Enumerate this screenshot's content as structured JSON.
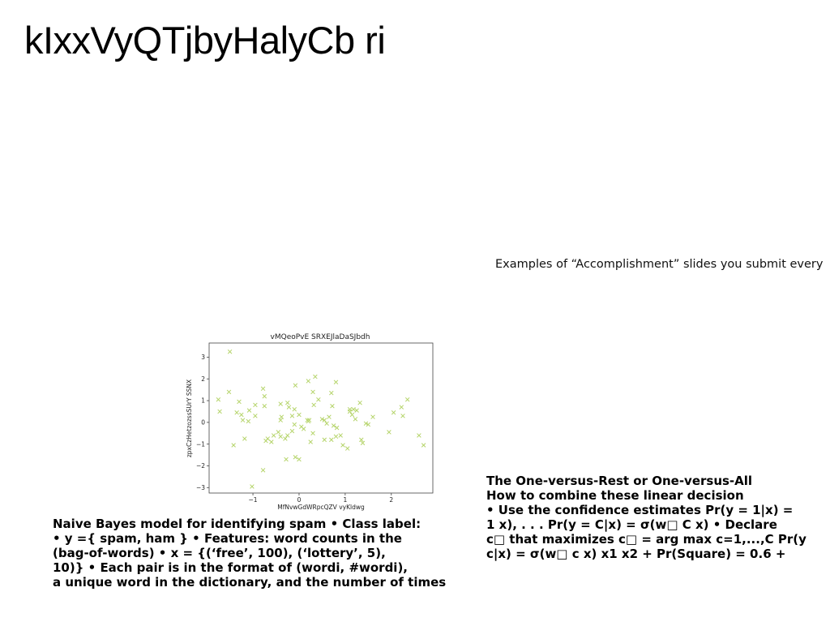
{
  "slide": {
    "title": "kIxxVyQTjbyHalyCb ri",
    "caption": "Examples of “Accomplishment” slides you submit every",
    "left_text": [
      "Naive Bayes model for identifying spam • Class label:",
      "• y ={ spam, ham } • Features: word counts in the",
      "(bag-of-words) • x = {(‘free’, 100), (‘lottery’, 5),",
      "10)} • Each pair is in the format of (wordi, #wordi),",
      "a unique word in the dictionary, and the number of times"
    ],
    "right_text": [
      "The One-versus-Rest or One-versus-All",
      "How to combine these linear decision",
      "• Use the confidence estimates Pr(y = 1|x) =",
      "1 x), . . . Pr(y = C|x) = σ(w□ C x) • Declare",
      "c□ that maximizes c□ = arg max c=1,...,C Pr(y",
      "c|x) = σ(w□ c x) x1 x2 + Pr(Square) = 0.6 +"
    ]
  },
  "chart_data": {
    "type": "scatter",
    "title": "vMQeoPvE SRXEJlaDaSJbdh",
    "xlabel": "MfNvwGdWRpcQZV vyKldwg",
    "ylabel": "zpxCzHetzozssSUrY SSNX",
    "xlim": [
      -1.95,
      2.9
    ],
    "ylim": [
      -3.25,
      3.65
    ],
    "xticks": [
      -1,
      0,
      1,
      2
    ],
    "yticks": [
      -3,
      -2,
      -1,
      0,
      1,
      2,
      3
    ],
    "marker": "x",
    "color": "#b5d46a",
    "grid": false,
    "points": [
      [
        -1.5,
        3.25
      ],
      [
        -1.75,
        1.05
      ],
      [
        -1.72,
        0.5
      ],
      [
        -1.52,
        1.4
      ],
      [
        -1.42,
        -1.05
      ],
      [
        -1.3,
        0.95
      ],
      [
        -1.35,
        0.45
      ],
      [
        -1.22,
        0.1
      ],
      [
        -1.18,
        -0.75
      ],
      [
        -1.25,
        0.35
      ],
      [
        -1.1,
        0.05
      ],
      [
        -1.08,
        0.55
      ],
      [
        -0.95,
        0.8
      ],
      [
        -0.95,
        0.3
      ],
      [
        -0.78,
        1.55
      ],
      [
        -0.75,
        1.2
      ],
      [
        -0.75,
        0.75
      ],
      [
        -0.72,
        -0.85
      ],
      [
        -0.68,
        -0.75
      ],
      [
        -0.6,
        -0.9
      ],
      [
        -0.78,
        -2.2
      ],
      [
        -1.02,
        -2.95
      ],
      [
        -0.55,
        -0.6
      ],
      [
        -0.45,
        -0.45
      ],
      [
        -0.4,
        -0.65
      ],
      [
        -0.4,
        0.85
      ],
      [
        -0.38,
        0.25
      ],
      [
        -0.4,
        0.1
      ],
      [
        -0.3,
        -0.75
      ],
      [
        -0.25,
        -0.6
      ],
      [
        -0.25,
        0.9
      ],
      [
        -0.22,
        0.7
      ],
      [
        -0.15,
        0.3
      ],
      [
        -0.15,
        -0.4
      ],
      [
        -0.28,
        -1.7
      ],
      [
        -0.1,
        -0.1
      ],
      [
        -0.08,
        1.7
      ],
      [
        -0.1,
        0.6
      ],
      [
        -0.08,
        -1.6
      ],
      [
        0,
        0.35
      ],
      [
        0.0,
        -1.7
      ],
      [
        0.05,
        -0.2
      ],
      [
        0.1,
        -0.3
      ],
      [
        0.18,
        0.1
      ],
      [
        0.2,
        0.05
      ],
      [
        0.22,
        0.1
      ],
      [
        0.25,
        -0.9
      ],
      [
        0.3,
        -0.5
      ],
      [
        0.2,
        1.9
      ],
      [
        0.3,
        1.4
      ],
      [
        0.32,
        0.8
      ],
      [
        0.35,
        2.1
      ],
      [
        0.42,
        1.05
      ],
      [
        0.5,
        0.15
      ],
      [
        0.55,
        0.1
      ],
      [
        0.55,
        -0.8
      ],
      [
        0.6,
        -0.05
      ],
      [
        0.65,
        0.25
      ],
      [
        0.7,
        -0.8
      ],
      [
        0.7,
        1.35
      ],
      [
        0.72,
        0.75
      ],
      [
        0.75,
        -0.15
      ],
      [
        0.8,
        -0.65
      ],
      [
        0.8,
        1.85
      ],
      [
        0.82,
        -0.25
      ],
      [
        0.9,
        -0.6
      ],
      [
        0.95,
        -1.05
      ],
      [
        1.05,
        -1.2
      ],
      [
        1.1,
        0.5
      ],
      [
        1.1,
        0.6
      ],
      [
        1.15,
        0.35
      ],
      [
        1.18,
        0.6
      ],
      [
        1.25,
        0.55
      ],
      [
        1.22,
        0.15
      ],
      [
        1.32,
        0.9
      ],
      [
        1.35,
        -0.8
      ],
      [
        1.38,
        -0.95
      ],
      [
        1.45,
        -0.05
      ],
      [
        1.5,
        -0.1
      ],
      [
        1.6,
        0.25
      ],
      [
        1.95,
        -0.45
      ],
      [
        2.05,
        0.45
      ],
      [
        2.22,
        0.7
      ],
      [
        2.25,
        0.3
      ],
      [
        2.35,
        1.05
      ],
      [
        2.6,
        -0.6
      ],
      [
        2.7,
        -1.05
      ]
    ]
  }
}
